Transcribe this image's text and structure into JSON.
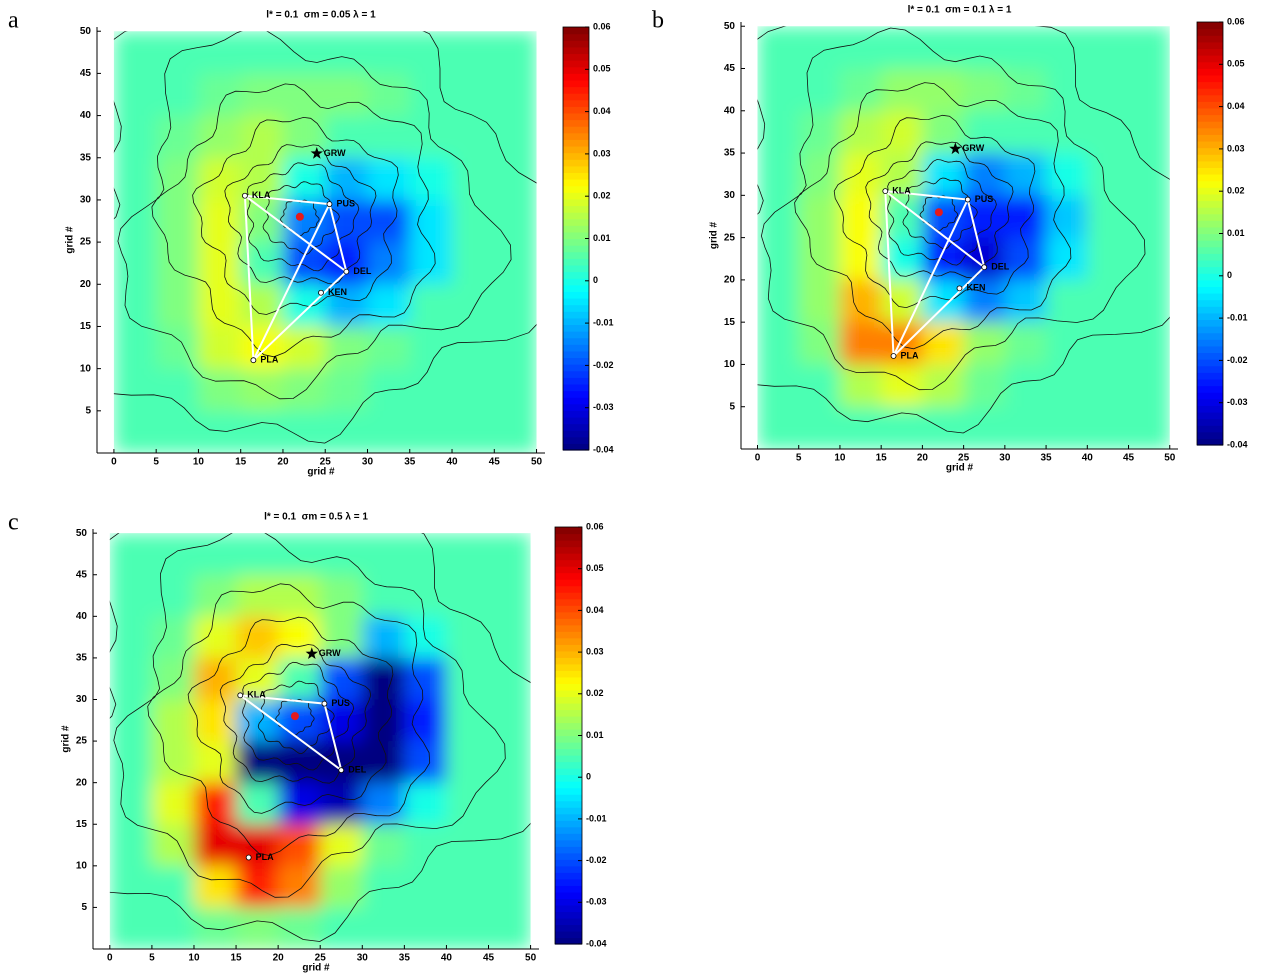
{
  "chart_data": [
    {
      "type": "heatmap",
      "panel": "a",
      "title": "l* = 0.1  σm = 0.05 λ = 1",
      "xlabel": "grid #",
      "ylabel": "grid #",
      "colormap": "jet",
      "xlim": [
        -2,
        51
      ],
      "ylim": [
        0,
        50.5
      ],
      "xticks": [
        0,
        5,
        10,
        15,
        20,
        25,
        30,
        35,
        40,
        45,
        50
      ],
      "yticks": [
        5,
        10,
        15,
        20,
        25,
        30,
        35,
        40,
        45,
        50
      ],
      "x": [
        2.5,
        7.5,
        12.5,
        17.5,
        22.5,
        27.5,
        32.5,
        37.5,
        42.5,
        47.5
      ],
      "y": [
        47.5,
        42.5,
        37.5,
        32.5,
        27.5,
        22.5,
        17.5,
        12.5,
        7.5,
        2.5
      ],
      "z": [
        [
          0.005,
          0.005,
          0.005,
          0.005,
          0.005,
          0.005,
          0.005,
          0.005,
          0.005,
          0.005
        ],
        [
          0.005,
          0.005,
          0.008,
          0.01,
          0.01,
          0.01,
          0.008,
          0.005,
          0.005,
          0.005
        ],
        [
          0.005,
          0.008,
          0.012,
          0.015,
          0.01,
          0.005,
          0.005,
          0.005,
          0.005,
          0.005
        ],
        [
          0.005,
          0.01,
          0.018,
          0.015,
          0,
          -0.01,
          -0.005,
          0,
          0.005,
          0.005
        ],
        [
          0.005,
          0.01,
          0.02,
          0.01,
          -0.015,
          -0.02,
          -0.02,
          -0.005,
          0.005,
          0.005
        ],
        [
          0.005,
          0.01,
          0.02,
          0.005,
          -0.02,
          -0.025,
          -0.015,
          -0.005,
          0.005,
          0.005
        ],
        [
          0.005,
          0.01,
          0.02,
          0.015,
          0,
          -0.01,
          -0.005,
          0.005,
          0.005,
          0.005
        ],
        [
          0.005,
          0.008,
          0.018,
          0.022,
          0.018,
          0.01,
          0.008,
          0.005,
          0.005,
          0.005
        ],
        [
          0.005,
          0.005,
          0.01,
          0.012,
          0.01,
          0.008,
          0.005,
          0.005,
          0.005,
          0.005
        ],
        [
          0.005,
          0.005,
          0.005,
          0.005,
          0.005,
          0.005,
          0.005,
          0.005,
          0.005,
          0.005
        ]
      ],
      "colorbar": {
        "lim": [
          -0.04,
          0.06
        ],
        "ticks": [
          -0.04,
          -0.03,
          -0.02,
          -0.01,
          0,
          0.01,
          0.02,
          0.03,
          0.04,
          0.05,
          0.06
        ]
      },
      "stations": [
        {
          "name": "KLA",
          "x": 15.5,
          "y": 30.5
        },
        {
          "name": "PUS",
          "x": 25.5,
          "y": 29.5
        },
        {
          "name": "DEL",
          "x": 27.5,
          "y": 21.5
        },
        {
          "name": "KEN",
          "x": 24.5,
          "y": 19
        },
        {
          "name": "PLA",
          "x": 16.5,
          "y": 11
        },
        {
          "name": "GRW",
          "x": 24,
          "y": 35.5
        }
      ],
      "source": {
        "x": 22,
        "y": 28
      }
    },
    {
      "type": "heatmap",
      "panel": "b",
      "title": "l* = 0.1  σm = 0.1 λ = 1",
      "xlabel": "grid #",
      "ylabel": "grid #",
      "colormap": "jet",
      "xlim": [
        -2,
        51
      ],
      "ylim": [
        0,
        50.5
      ],
      "xticks": [
        0,
        5,
        10,
        15,
        20,
        25,
        30,
        35,
        40,
        45,
        50
      ],
      "yticks": [
        5,
        10,
        15,
        20,
        25,
        30,
        35,
        40,
        45,
        50
      ],
      "x": [
        2.5,
        7.5,
        12.5,
        17.5,
        22.5,
        27.5,
        32.5,
        37.5,
        42.5,
        47.5
      ],
      "y": [
        47.5,
        42.5,
        37.5,
        32.5,
        27.5,
        22.5,
        17.5,
        12.5,
        7.5,
        2.5
      ],
      "z": [
        [
          0.005,
          0.005,
          0.005,
          0.005,
          0.005,
          0.005,
          0.005,
          0.005,
          0.005,
          0.005
        ],
        [
          0.005,
          0.005,
          0.008,
          0.012,
          0.012,
          0.01,
          0.008,
          0.005,
          0.005,
          0.005
        ],
        [
          0.005,
          0.008,
          0.015,
          0.018,
          0.01,
          0.005,
          0.005,
          0.005,
          0.005,
          0.005
        ],
        [
          0.005,
          0.01,
          0.02,
          0.015,
          -0.005,
          -0.015,
          -0.01,
          0,
          0.005,
          0.005
        ],
        [
          0.005,
          0.012,
          0.022,
          0.005,
          -0.02,
          -0.025,
          -0.025,
          -0.008,
          0.005,
          0.005
        ],
        [
          0.005,
          0.012,
          0.022,
          0,
          -0.025,
          -0.032,
          -0.02,
          -0.005,
          0.005,
          0.005
        ],
        [
          0.005,
          0.012,
          0.03,
          0.018,
          -0.005,
          -0.015,
          -0.008,
          0.005,
          0.005,
          0.005
        ],
        [
          0.005,
          0.01,
          0.035,
          0.035,
          0.025,
          0.012,
          0.008,
          0.005,
          0.005,
          0.005
        ],
        [
          0.005,
          0.005,
          0.015,
          0.02,
          0.015,
          0.008,
          0.005,
          0.005,
          0.005,
          0.005
        ],
        [
          0.005,
          0.005,
          0.005,
          0.005,
          0.005,
          0.005,
          0.005,
          0.005,
          0.005,
          0.005
        ]
      ],
      "colorbar": {
        "lim": [
          -0.04,
          0.06
        ],
        "ticks": [
          -0.04,
          -0.03,
          -0.02,
          -0.01,
          0,
          0.01,
          0.02,
          0.03,
          0.04,
          0.05,
          0.06
        ]
      },
      "stations": [
        {
          "name": "KLA",
          "x": 15.5,
          "y": 30.5
        },
        {
          "name": "PUS",
          "x": 25.5,
          "y": 29.5
        },
        {
          "name": "DEL",
          "x": 27.5,
          "y": 21.5
        },
        {
          "name": "KEN",
          "x": 24.5,
          "y": 19
        },
        {
          "name": "PLA",
          "x": 16.5,
          "y": 11
        },
        {
          "name": "GRW",
          "x": 24,
          "y": 35.5
        }
      ],
      "source": {
        "x": 22,
        "y": 28
      }
    },
    {
      "type": "heatmap",
      "panel": "c",
      "title": "l* = 0.1  σm = 0.5 λ = 1",
      "xlabel": "grid #",
      "ylabel": "grid #",
      "colormap": "jet",
      "xlim": [
        -2,
        51
      ],
      "ylim": [
        0,
        50.5
      ],
      "xticks": [
        0,
        5,
        10,
        15,
        20,
        25,
        30,
        35,
        40,
        45,
        50
      ],
      "yticks": [
        5,
        10,
        15,
        20,
        25,
        30,
        35,
        40,
        45,
        50
      ],
      "x": [
        2.5,
        7.5,
        12.5,
        17.5,
        22.5,
        27.5,
        32.5,
        37.5,
        42.5,
        47.5
      ],
      "y": [
        47.5,
        42.5,
        37.5,
        32.5,
        27.5,
        22.5,
        17.5,
        12.5,
        7.5,
        2.5
      ],
      "z": [
        [
          0.005,
          0.005,
          0.005,
          0.005,
          0.005,
          0.005,
          0.005,
          0.005,
          0.005,
          0.005
        ],
        [
          0.005,
          0.005,
          0.01,
          0.015,
          0.015,
          0.01,
          0.005,
          0.005,
          0.005,
          0.005
        ],
        [
          0.005,
          0.008,
          0.02,
          0.028,
          0.022,
          0.01,
          -0.01,
          0,
          0.005,
          0.005
        ],
        [
          0.005,
          0.01,
          0.03,
          0.02,
          0.005,
          -0.02,
          -0.04,
          -0.02,
          0.005,
          0.005
        ],
        [
          0.005,
          0.015,
          0.025,
          -0.01,
          -0.02,
          -0.03,
          -0.04,
          -0.025,
          0.005,
          0.005
        ],
        [
          0.005,
          0.015,
          0.02,
          -0.04,
          -0.04,
          -0.04,
          -0.04,
          -0.02,
          0.005,
          0.005
        ],
        [
          0.005,
          0.02,
          0.045,
          0.005,
          -0.03,
          -0.035,
          -0.015,
          0,
          0.005,
          0.005
        ],
        [
          0.005,
          0.015,
          0.05,
          0.05,
          0.04,
          0.02,
          0.008,
          0.005,
          0.005,
          0.005
        ],
        [
          0.005,
          0.005,
          0.025,
          0.045,
          0.035,
          0.012,
          0.005,
          0.005,
          0.005,
          0.005
        ],
        [
          0.005,
          0.005,
          0.008,
          0.01,
          0.008,
          0.005,
          0.005,
          0.005,
          0.005,
          0.005
        ]
      ],
      "colorbar": {
        "lim": [
          -0.04,
          0.06
        ],
        "ticks": [
          -0.04,
          -0.03,
          -0.02,
          -0.01,
          0,
          0.01,
          0.02,
          0.03,
          0.04,
          0.05,
          0.06
        ]
      },
      "stations": [
        {
          "name": "KLA",
          "x": 15.5,
          "y": 30.5
        },
        {
          "name": "PUS",
          "x": 25.5,
          "y": 29.5
        },
        {
          "name": "DEL",
          "x": 27.5,
          "y": 21.5
        },
        {
          "name": "PLA",
          "x": 16.5,
          "y": 11
        },
        {
          "name": "GRW",
          "x": 24,
          "y": 35.5
        }
      ],
      "source": {
        "x": 22,
        "y": 28
      }
    }
  ]
}
